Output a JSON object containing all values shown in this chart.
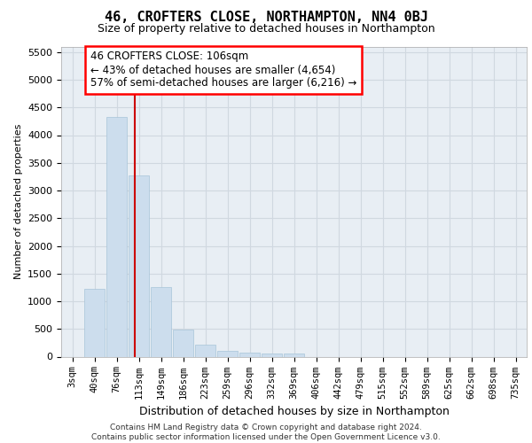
{
  "title": "46, CROFTERS CLOSE, NORTHAMPTON, NN4 0BJ",
  "subtitle": "Size of property relative to detached houses in Northampton",
  "xlabel": "Distribution of detached houses by size in Northampton",
  "ylabel": "Number of detached properties",
  "footer_line1": "Contains HM Land Registry data © Crown copyright and database right 2024.",
  "footer_line2": "Contains public sector information licensed under the Open Government Licence v3.0.",
  "annotation_line1": "46 CROFTERS CLOSE: 106sqm",
  "annotation_line2": "← 43% of detached houses are smaller (4,654)",
  "annotation_line3": "57% of semi-detached houses are larger (6,216) →",
  "bar_color": "#ccdded",
  "bar_edge_color": "#a8c4d8",
  "grid_color": "#d0d8e0",
  "bg_plot_color": "#e8eef4",
  "vline_color": "#cc0000",
  "vline_x": 2.82,
  "categories": [
    "3sqm",
    "40sqm",
    "76sqm",
    "113sqm",
    "149sqm",
    "186sqm",
    "223sqm",
    "259sqm",
    "296sqm",
    "332sqm",
    "369sqm",
    "406sqm",
    "442sqm",
    "479sqm",
    "515sqm",
    "552sqm",
    "589sqm",
    "625sqm",
    "662sqm",
    "698sqm",
    "735sqm"
  ],
  "values": [
    0,
    1230,
    4330,
    3280,
    1260,
    490,
    215,
    105,
    75,
    60,
    50,
    0,
    0,
    0,
    0,
    0,
    0,
    0,
    0,
    0,
    0
  ],
  "ylim": [
    0,
    5600
  ],
  "yticks": [
    0,
    500,
    1000,
    1500,
    2000,
    2500,
    3000,
    3500,
    4000,
    4500,
    5000,
    5500
  ],
  "bg_color": "#ffffff",
  "title_fontsize": 11,
  "subtitle_fontsize": 9,
  "ylabel_fontsize": 8,
  "xlabel_fontsize": 9,
  "tick_fontsize": 8,
  "xtick_fontsize": 7.5
}
